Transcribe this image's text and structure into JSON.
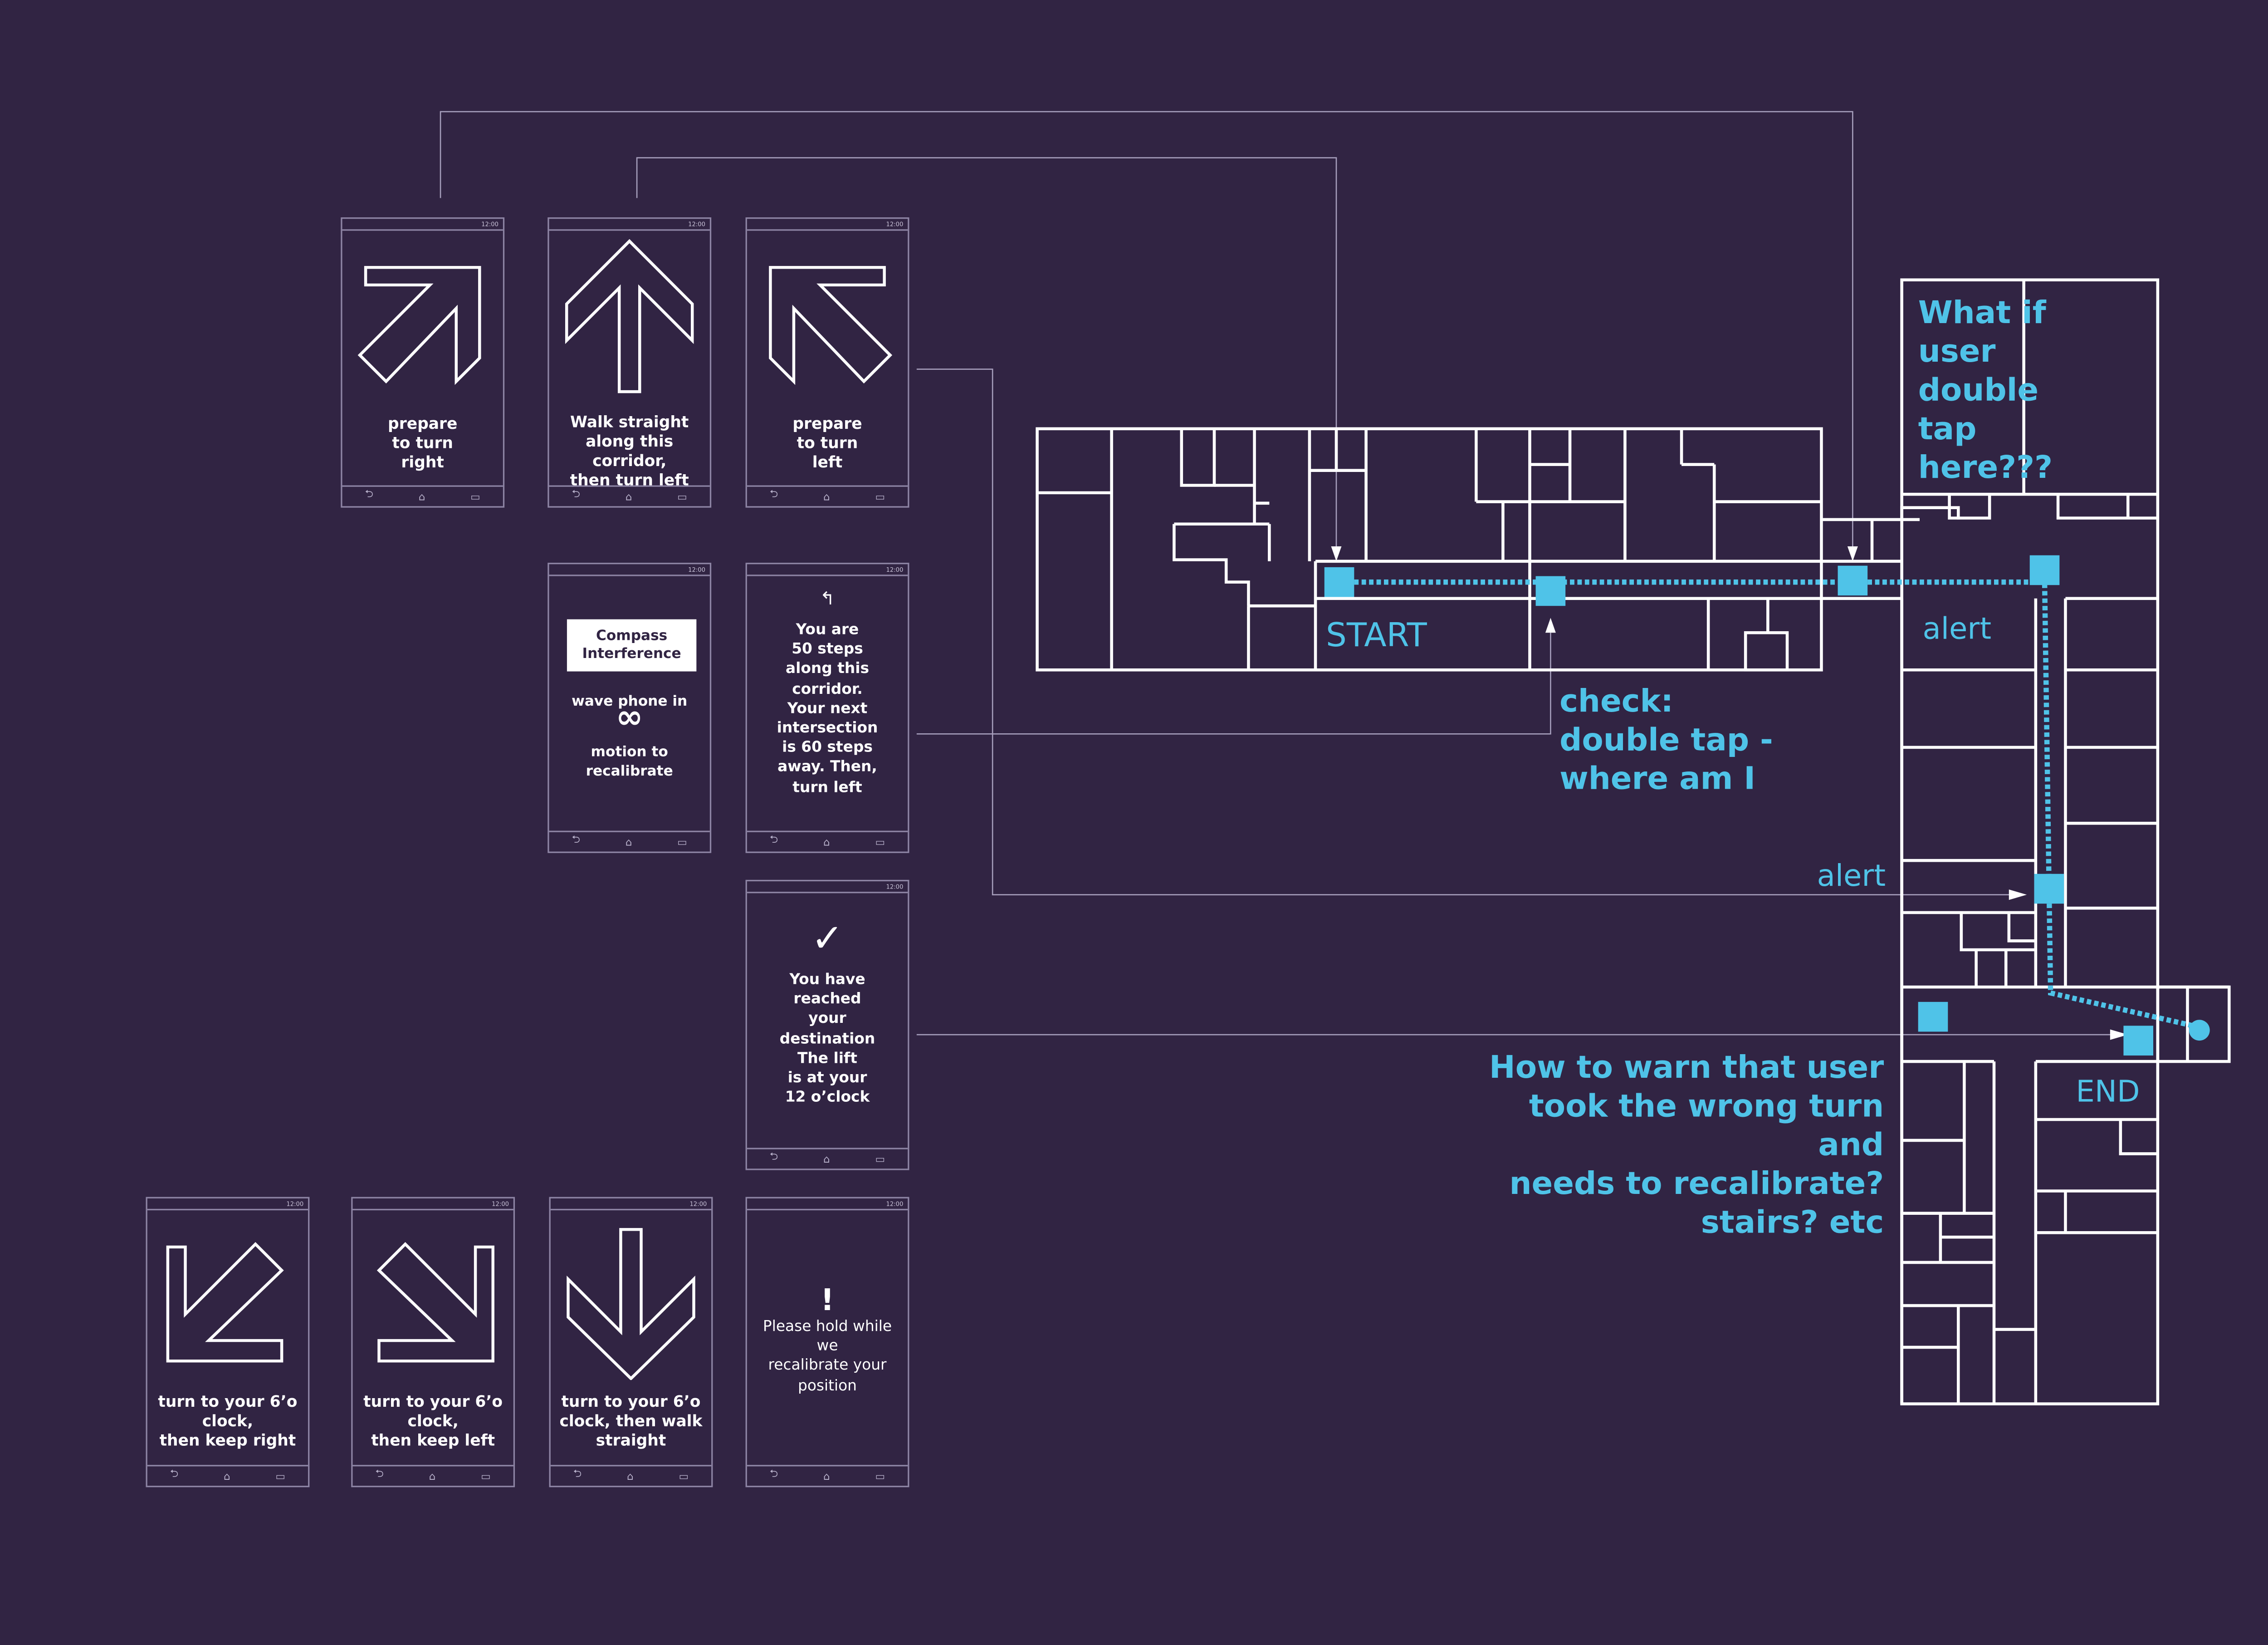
{
  "screens": [
    {
      "id": "prepare-right",
      "icon": "arrow-up-right-icon",
      "text": "prepare\nto turn\nright"
    },
    {
      "id": "walk-straight",
      "icon": "arrow-up-icon",
      "text": "Walk straight\nalong this corridor,\nthen turn left"
    },
    {
      "id": "prepare-left",
      "icon": "arrow-up-left-icon",
      "text": "prepare\nto turn\nleft"
    },
    {
      "id": "compass",
      "icon": "infinity-icon",
      "box": "Compass\nInterference",
      "text_top": "wave phone in",
      "text_bottom": "motion to\nrecalibrate"
    },
    {
      "id": "steps",
      "icon": "turn-left-small-icon",
      "text": "You are\n50 steps\nalong this\ncorridor.\nYour next\nintersection\nis 60 steps\naway. Then,\nturn left"
    },
    {
      "id": "destination",
      "icon": "checkmark-icon",
      "text": "You have\nreached\nyour\ndestination\nThe lift\nis at your\n12 o’clock"
    },
    {
      "id": "keep-right",
      "icon": "arrow-down-left-icon",
      "text": "turn to your 6’o\nclock,\nthen keep right"
    },
    {
      "id": "keep-left",
      "icon": "arrow-down-right-icon",
      "text": "turn to your 6’o\nclock,\nthen keep left"
    },
    {
      "id": "walk-back",
      "icon": "arrow-down-icon",
      "text": "turn to your 6’o\nclock, then walk\nstraight"
    },
    {
      "id": "recalibrate",
      "icon": "exclamation-icon",
      "text": "Please hold while we\nrecalibrate your\nposition"
    }
  ],
  "status_time": "12:00",
  "nav_icons": [
    "back-icon",
    "home-icon",
    "recents-icon"
  ],
  "map_labels": {
    "start": "START",
    "end": "END",
    "alert_top": "alert",
    "alert_mid": "alert"
  },
  "annotations": {
    "double_tap": "What if\nuser\ndouble\ntap\nhere???",
    "check": "check:\ndouble tap -\nwhere am I",
    "warn": "How to warn that user\ntook the wrong turn and\nneeds to recalibrate?\nstairs? etc"
  },
  "colors": {
    "background": "#312443",
    "accent": "#4fc3e8",
    "line": "#ffffff",
    "frame": "#8d84a4"
  }
}
